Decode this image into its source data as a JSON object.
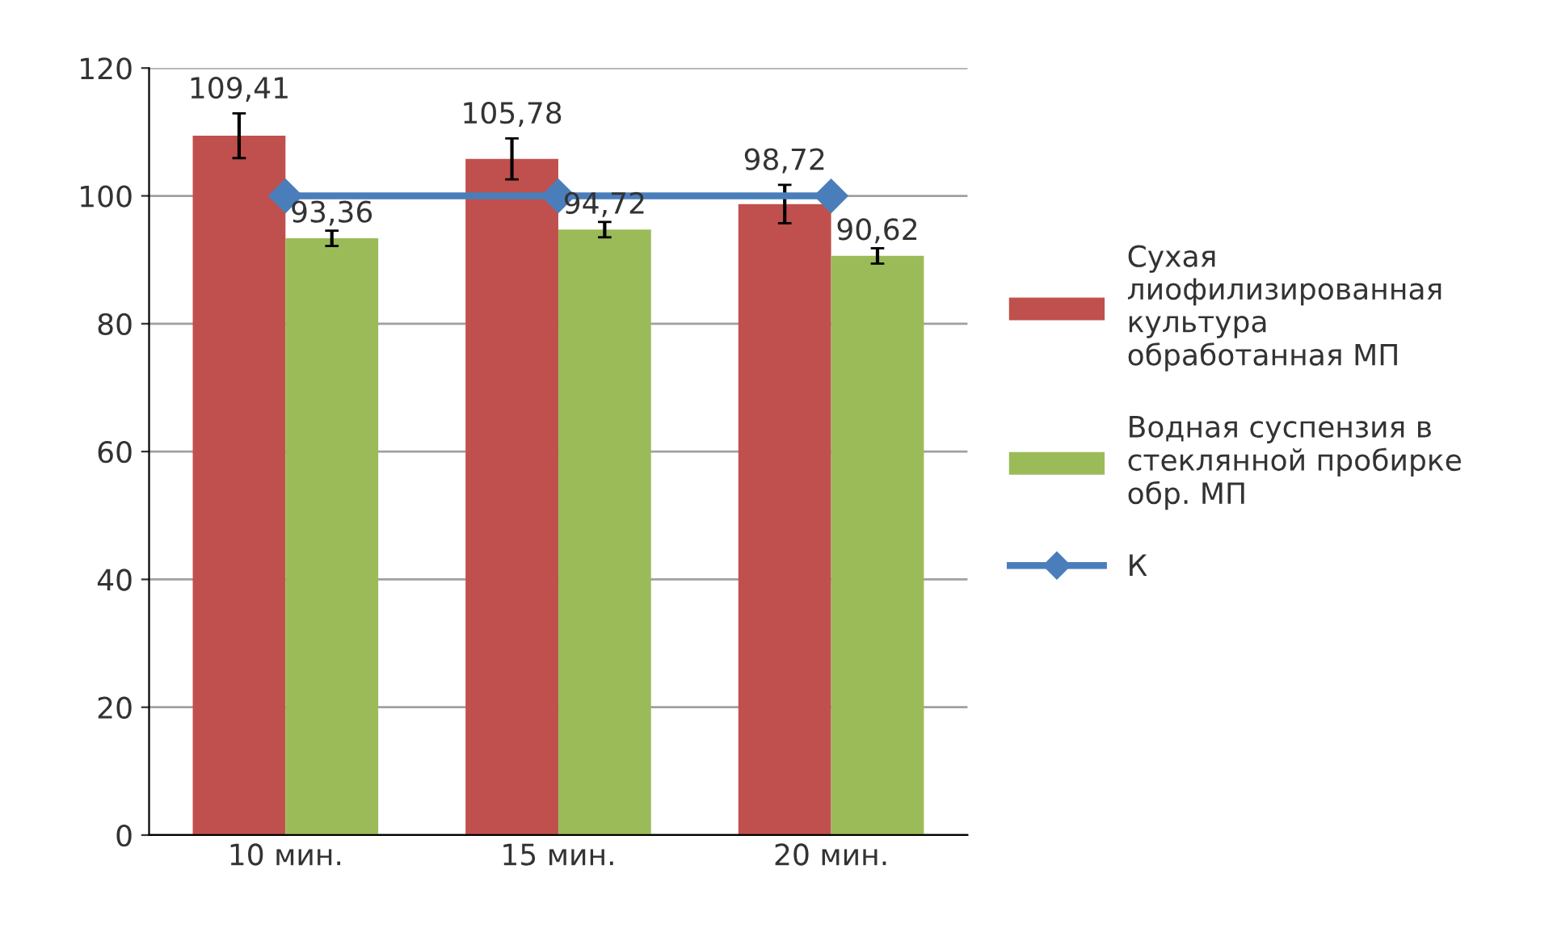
{
  "chart_data": {
    "type": "bar",
    "categories": [
      "10 мин.",
      "15 мин.",
      "20 мин."
    ],
    "series": [
      {
        "name": "Сухая лиофилизированная культура обработанная МП",
        "color": "#c0504d",
        "values": [
          109.41,
          105.78,
          98.72
        ],
        "errors": [
          3.5,
          3.2,
          3.0
        ],
        "value_labels": [
          "109,41",
          "105,78",
          "98,72"
        ]
      },
      {
        "name": "Водная суспензия в стеклянной пробирке обр. МП",
        "color": "#9bbb59",
        "values": [
          93.36,
          94.72,
          90.62
        ],
        "errors": [
          1.2,
          1.2,
          1.2
        ],
        "value_labels": [
          "93,36",
          "94,72",
          "90,62"
        ]
      },
      {
        "name": "К",
        "type": "line",
        "color": "#4a7ebb",
        "values": [
          100,
          100,
          100
        ],
        "marker": "diamond"
      }
    ],
    "ylim": [
      0,
      120
    ],
    "yticks": [
      0,
      20,
      40,
      60,
      80,
      100,
      120
    ],
    "grid": "y",
    "legend": "right"
  }
}
